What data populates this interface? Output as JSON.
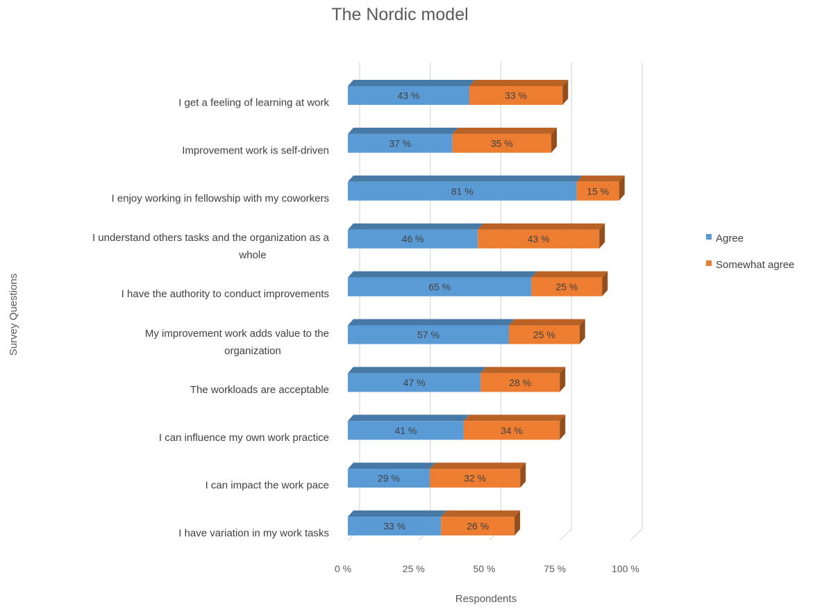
{
  "chart_data": {
    "type": "bar",
    "orientation": "horizontal",
    "stacked": true,
    "three_d": true,
    "title": "The Nordic model",
    "xlabel": "Respondents",
    "ylabel": "Survey Questions",
    "xlim": [
      0,
      100
    ],
    "xticks": [
      0,
      25,
      50,
      75,
      100
    ],
    "xtick_labels": [
      "0 %",
      "25 %",
      "50 %",
      "75 %",
      "100 %"
    ],
    "grid": true,
    "legend_position": "right",
    "value_suffix": " %",
    "categories": [
      [
        "I get a feeling of learning at work"
      ],
      [
        "Improvement work is self-driven"
      ],
      [
        "I enjoy working in fellowship with my coworkers"
      ],
      [
        "I understand others tasks and the organization as a",
        "whole"
      ],
      [
        "I have the authority to conduct improvements"
      ],
      [
        "My improvement work adds value to the",
        "organization"
      ],
      [
        "The workloads are acceptable"
      ],
      [
        "I can influence my own work practice"
      ],
      [
        "I can impact the work pace"
      ],
      [
        "I have variation in my work tasks"
      ]
    ],
    "series": [
      {
        "name": "Agree",
        "color": "#5b9bd5",
        "values": [
          43,
          37,
          81,
          46,
          65,
          57,
          47,
          41,
          29,
          33
        ]
      },
      {
        "name": "Somewhat agree",
        "color": "#ed7d31",
        "values": [
          33,
          35,
          15,
          43,
          25,
          25,
          28,
          34,
          32,
          26
        ]
      }
    ]
  }
}
